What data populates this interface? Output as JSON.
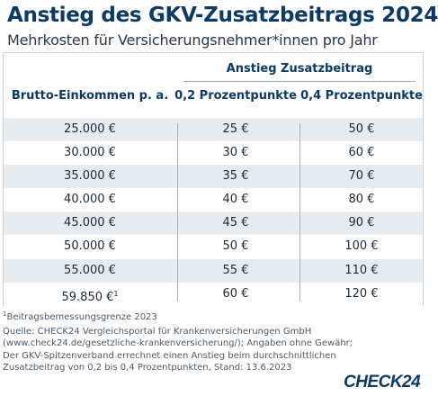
{
  "header": {
    "title": "Anstieg des GKV-Zusatzbeitrags 2024",
    "subtitle": "Mehrkosten für Versicherungsnehmer*innen pro Jahr"
  },
  "table": {
    "group_header": "Anstieg Zusatzbeitrag",
    "columns": [
      "Brutto-Einkommen p. a.",
      "0,2 Prozentpunkte",
      "0,4 Prozentpunkte"
    ],
    "rows": [
      {
        "income": "25.000 €",
        "p02": "25 €",
        "p04": "50 €"
      },
      {
        "income": "30.000 €",
        "p02": "30 €",
        "p04": "60 €"
      },
      {
        "income": "35.000 €",
        "p02": "35 €",
        "p04": "70 €"
      },
      {
        "income": "40.000 €",
        "p02": "40 €",
        "p04": "80 €"
      },
      {
        "income": "45.000 €",
        "p02": "45 €",
        "p04": "90 €"
      },
      {
        "income": "50.000 €",
        "p02": "50 €",
        "p04": "100 €"
      },
      {
        "income": "55.000 €",
        "p02": "55 €",
        "p04": "110 €"
      },
      {
        "income": "59.850 €",
        "income_note": "1",
        "p02": "60 €",
        "p04": "120 €"
      }
    ]
  },
  "footnote": {
    "marker": "1",
    "text": "Beitragsbemessungsgrenze 2023"
  },
  "source": "Quelle: CHECK24 Vergleichsportal für Krankenversicherungen GmbH (www.check24.de/gesetzliche-krankenversicherung/); Angaben ohne Gewähr; Der GKV-Spitzenverband errechnet einen Anstieg beim durchschnittlichen Zusatzbeitrag von 0,2 bis 0,4 Prozentpunkten, Stand: 13.6.2023",
  "logo": "CHECK24",
  "colors": {
    "accent": "#0b3a66",
    "row_stripe": "#e7ecf1"
  }
}
